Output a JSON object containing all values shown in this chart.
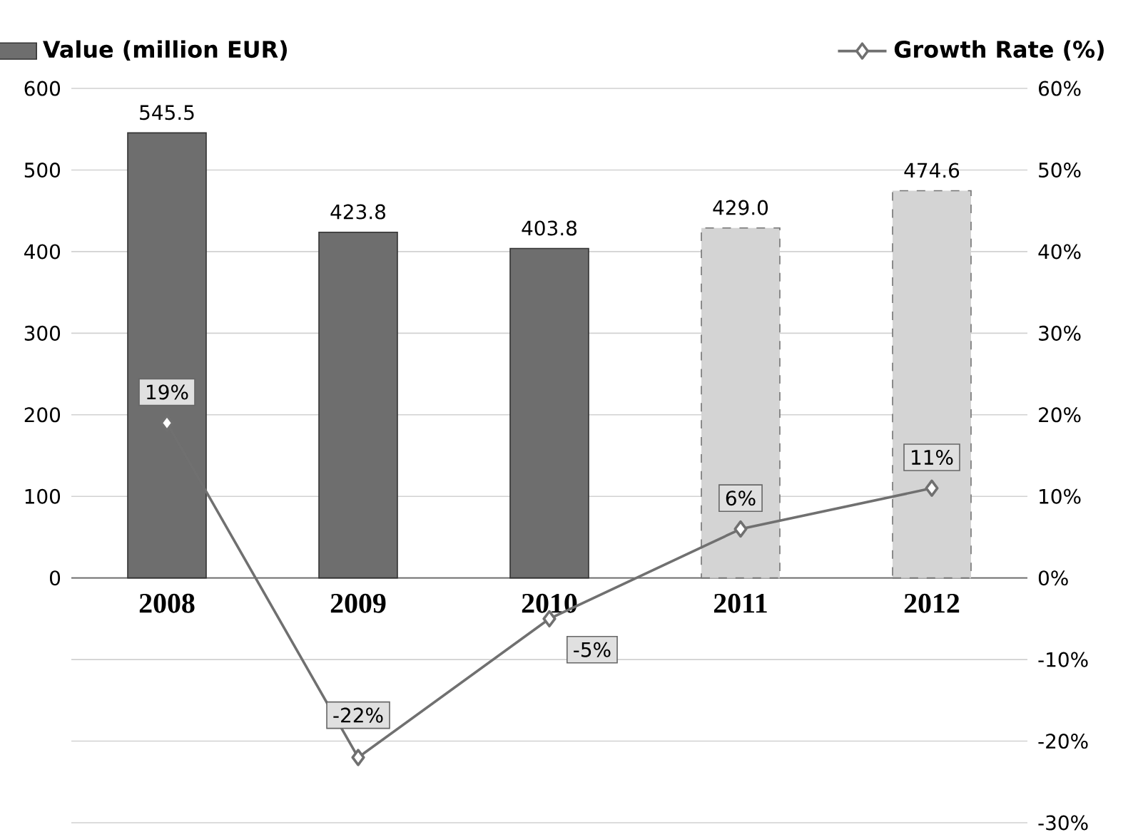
{
  "chart_data": {
    "type": "bar",
    "categories": [
      "2008",
      "2009",
      "2010",
      "2011",
      "2012"
    ],
    "series": [
      {
        "name": "Value (million EUR)",
        "color": "#6e6e6e",
        "values": [
          545.5,
          423.8,
          403.8,
          null,
          null
        ],
        "value_labels": [
          "545.5",
          "423.8",
          "403.8",
          null,
          null
        ]
      },
      {
        "color": "#d4d4d4",
        "line_style": "dashed",
        "values": [
          null,
          null,
          null,
          429.0,
          474.6
        ],
        "value_labels": [
          null,
          null,
          null,
          "429.0",
          "474.6"
        ]
      },
      {
        "type": "line",
        "axis": "y2",
        "name": "Growth Rate (%)",
        "color": "#707070",
        "marker": "diamond",
        "values": [
          19,
          -22,
          -5,
          6,
          11
        ],
        "value_labels": [
          "19%",
          "-22%",
          "-5%",
          "6%",
          "11%"
        ]
      }
    ],
    "ylim": [
      -300,
      600
    ],
    "yticks": [
      0,
      100,
      200,
      300,
      400,
      500,
      600
    ],
    "y2lim": [
      -30,
      60
    ],
    "y2ticks": [
      {
        "value": -30,
        "label": "-30%"
      },
      {
        "value": -20,
        "label": "-20%"
      },
      {
        "value": -10,
        "label": "-10%"
      },
      {
        "value": 0,
        "label": "0%"
      },
      {
        "value": 10,
        "label": "10%"
      },
      {
        "value": 20,
        "label": "20%"
      },
      {
        "value": 30,
        "label": "30%"
      },
      {
        "value": 40,
        "label": "40%"
      },
      {
        "value": 50,
        "label": "50%"
      },
      {
        "value": 60,
        "label": "60%"
      }
    ],
    "grid": "y2",
    "legend": "top"
  }
}
